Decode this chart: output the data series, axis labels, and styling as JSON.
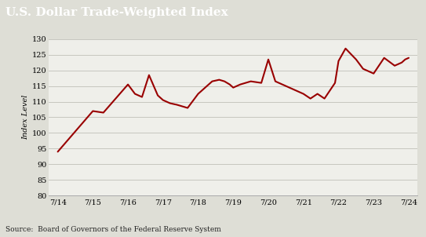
{
  "title": "U.S. Dollar Trade-Weighted Index",
  "ylabel": "Index Level",
  "source_text": "Source:  Board of Governors of the Federal Reserve System",
  "title_bg_color": "#3d3d3d",
  "title_text_color": "#ffffff",
  "line_color": "#990000",
  "line_width": 1.5,
  "bg_color": "#deded6",
  "plot_bg_color": "#efefea",
  "grid_color": "#c0c0b8",
  "ylim": [
    80,
    130
  ],
  "yticks": [
    80,
    85,
    90,
    95,
    100,
    105,
    110,
    115,
    120,
    125,
    130
  ],
  "xtick_labels": [
    "7/14",
    "7/15",
    "7/16",
    "7/17",
    "7/18",
    "7/19",
    "7/20",
    "7/21",
    "7/22",
    "7/23",
    "7/24"
  ],
  "x_values": [
    0,
    1,
    2,
    3,
    4,
    5,
    6,
    7,
    8,
    9,
    10
  ],
  "y_values": [
    94.0,
    107.0,
    106.5,
    115.5,
    112.5,
    111.5,
    118.5,
    112.0,
    110.5,
    109.5,
    109.0,
    108.0,
    112.5,
    114.5,
    116.5,
    117.0,
    116.5,
    115.5,
    114.5,
    115.5,
    116.5,
    116.0,
    123.5,
    116.5,
    115.5,
    114.0,
    112.5,
    111.0,
    112.5,
    111.0,
    113.5,
    116.0,
    123.0,
    127.0,
    123.5,
    120.5,
    119.5,
    119.0,
    124.0,
    121.5,
    122.5,
    123.5,
    124.0
  ],
  "x_data": [
    0.0,
    1.0,
    1.3,
    2.0,
    2.2,
    2.4,
    2.6,
    2.85,
    3.0,
    3.2,
    3.4,
    3.7,
    4.0,
    4.2,
    4.4,
    4.6,
    4.75,
    4.9,
    5.0,
    5.2,
    5.5,
    5.8,
    6.0,
    6.2,
    6.4,
    6.7,
    7.0,
    7.2,
    7.4,
    7.6,
    7.75,
    7.9,
    8.0,
    8.2,
    8.5,
    8.7,
    8.9,
    9.0,
    9.3,
    9.6,
    9.8,
    9.9,
    10.0
  ],
  "title_fontsize": 11,
  "tick_fontsize": 7,
  "source_fontsize": 6.5
}
